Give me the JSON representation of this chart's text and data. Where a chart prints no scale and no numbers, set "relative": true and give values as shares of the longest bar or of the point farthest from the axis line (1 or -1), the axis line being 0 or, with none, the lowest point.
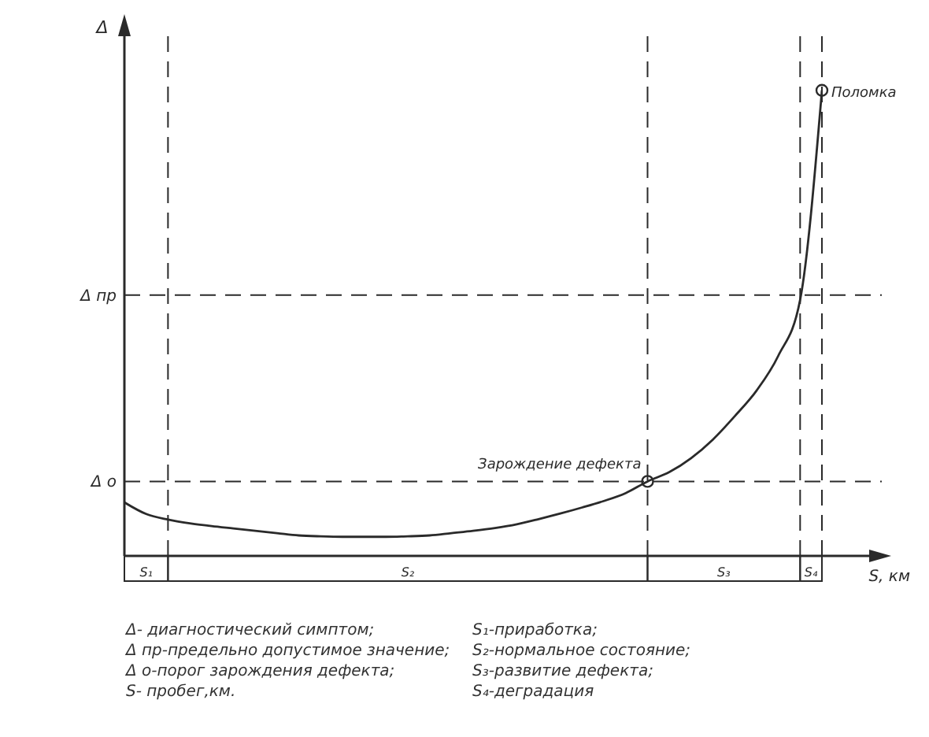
{
  "chart_data": {
    "type": "line",
    "relative": true,
    "ylabel": "Δ",
    "xlabel": "S, км",
    "categories": [
      null,
      null,
      null,
      null,
      null,
      null,
      null,
      null,
      null,
      null,
      null,
      null,
      null,
      null,
      null,
      null,
      null,
      null,
      null,
      null,
      null,
      null,
      null,
      null,
      null,
      null,
      null,
      null,
      null,
      null,
      null,
      null,
      null
    ],
    "series": [
      {
        "color": "#2a2a2a",
        "values": [
          0.115,
          0.09,
          0.078,
          0.07,
          0.064,
          0.059,
          0.054,
          0.049,
          0.044,
          0.042,
          0.041,
          0.041,
          0.041,
          0.042,
          0.044,
          0.049,
          0.054,
          0.06,
          0.068,
          0.079,
          0.091,
          0.104,
          0.118,
          0.135,
          0.16,
          0.18,
          0.21,
          0.25,
          0.3,
          0.355,
          0.43,
          0.55,
          1.0
        ]
      }
    ],
    "marker": "none",
    "line_style": "solid",
    "grid": "x",
    "ref_lines": [
      {
        "axis": "y",
        "value": 0.56,
        "label": "Δ пр",
        "line_style": "dashed",
        "color": "#2a2a2a"
      },
      {
        "axis": "y",
        "value": 0.16,
        "label": "Δ о",
        "line_style": "dashed",
        "color": "#2a2a2a"
      }
    ],
    "annotations": [
      "Поломка",
      "Зарождение дефекта",
      "S₁",
      "S₂",
      "S₃",
      "S₄",
      "Δ- диагностический симптом;",
      "Δ пр-предельно допустимое значение;",
      "Δ о-порог зарождения дефекта;",
      "S- пробег,км.",
      "S₁-приработка;",
      "S₂-нормальное состояние;",
      "S₃-развитие дефекта;",
      "S₄-деградация"
    ]
  }
}
